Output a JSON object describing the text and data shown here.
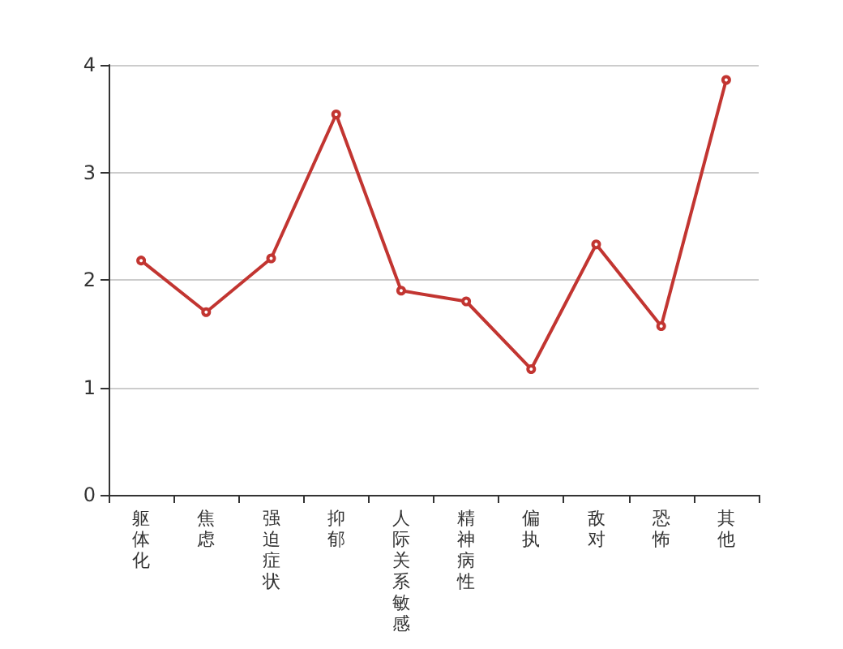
{
  "chart_data": {
    "type": "line",
    "categories": [
      "躯体化",
      "焦虑",
      "强迫症状",
      "抑郁",
      "人际关系敏感",
      "精神病性",
      "偏执",
      "敌对",
      "恐怖",
      "其他"
    ],
    "values": [
      2.18,
      1.7,
      2.2,
      3.54,
      1.9,
      1.8,
      1.17,
      2.33,
      1.57,
      3.86
    ],
    "color": "#c23531",
    "ylim": [
      0,
      4
    ],
    "yticks": [
      0,
      1,
      2,
      3,
      4
    ],
    "grid": "y",
    "marker": "circle"
  }
}
